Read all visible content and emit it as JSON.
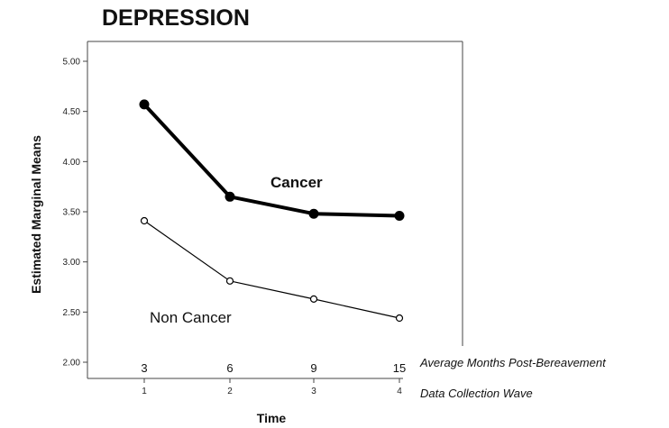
{
  "chart_data": {
    "type": "line",
    "title": "DEPRESSION",
    "xlabel": "Time",
    "ylabel": "Estimated Marginal Means",
    "ylim": [
      2.0,
      5.0
    ],
    "yticks": [
      "2.00",
      "2.50",
      "3.00",
      "3.50",
      "4.00",
      "4.50",
      "5.00"
    ],
    "x": [
      1,
      2,
      3,
      4
    ],
    "xtick_labels": [
      "1",
      "2",
      "3",
      "4"
    ],
    "months_row": {
      "label": "Average Months Post-Bereavement",
      "values": [
        "3",
        "6",
        "9",
        "15"
      ]
    },
    "wave_row_label": "Data Collection Wave",
    "series": [
      {
        "name": "Cancer",
        "values": [
          4.57,
          3.65,
          3.48,
          3.46
        ],
        "style": "bold",
        "color": "#000000"
      },
      {
        "name": "Non Cancer",
        "values": [
          3.41,
          2.81,
          2.63,
          2.44
        ],
        "style": "thin",
        "color": "#000000"
      }
    ],
    "grid": false
  }
}
